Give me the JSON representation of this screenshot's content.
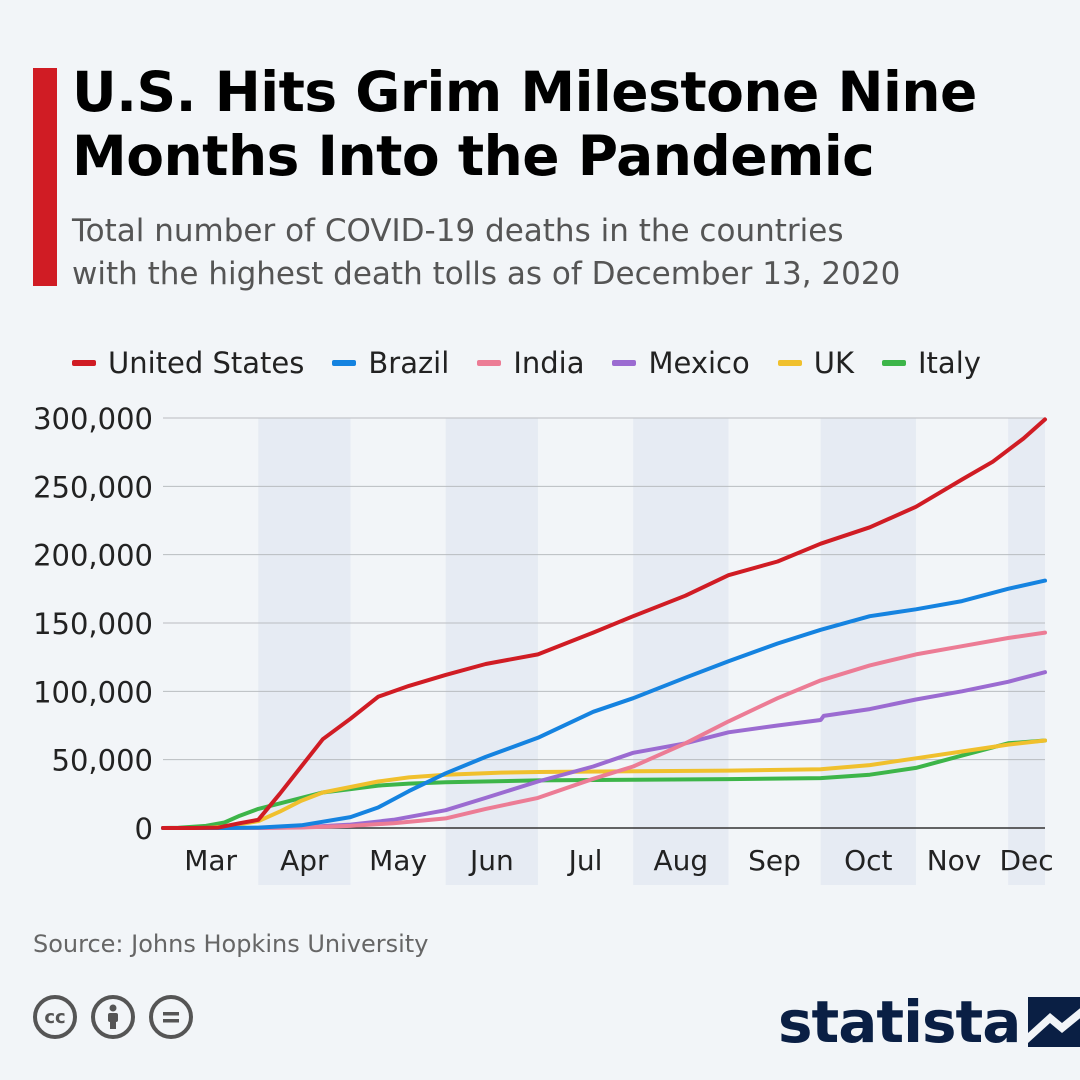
{
  "header": {
    "title_line1": "U.S. Hits Grim Milestone Nine",
    "title_line2": "Months Into the Pandemic",
    "subtitle_line1": "Total number of COVID-19 deaths in the countries",
    "subtitle_line2": "with the highest death tolls as of December 13, 2020",
    "accent_color": "#d01c24"
  },
  "source": "Source: Johns Hopkins University",
  "brand": {
    "name": "statista",
    "color": "#0a1f44"
  },
  "license_icons": [
    "cc-icon",
    "attribution-icon",
    "no-derivatives-icon"
  ],
  "chart_data": {
    "type": "line",
    "title": "U.S. Hits Grim Milestone Nine Months Into the Pandemic",
    "xlabel": "",
    "ylabel": "",
    "ylim": [
      0,
      300000
    ],
    "y_ticks": [
      0,
      50000,
      100000,
      150000,
      200000,
      250000,
      300000
    ],
    "y_tick_labels": [
      "0",
      "50,000",
      "100,000",
      "150,000",
      "200,000",
      "250,000",
      "300,000"
    ],
    "x_range_days": [
      0,
      287
    ],
    "x_unit": "days since Mar 1, 2020",
    "months": [
      {
        "label": "Mar",
        "start": 0,
        "end": 31
      },
      {
        "label": "Apr",
        "start": 31,
        "end": 61
      },
      {
        "label": "May",
        "start": 61,
        "end": 92
      },
      {
        "label": "Jun",
        "start": 92,
        "end": 122
      },
      {
        "label": "Jul",
        "start": 122,
        "end": 153
      },
      {
        "label": "Aug",
        "start": 153,
        "end": 184
      },
      {
        "label": "Sep",
        "start": 184,
        "end": 214
      },
      {
        "label": "Oct",
        "start": 214,
        "end": 245
      },
      {
        "label": "Nov",
        "start": 245,
        "end": 275
      },
      {
        "label": "Dec",
        "start": 275,
        "end": 287
      }
    ],
    "legend_position": "top-left",
    "series": [
      {
        "name": "United States",
        "color": "#d01c24",
        "x": [
          0,
          10,
          18,
          25,
          31,
          38,
          45,
          52,
          61,
          70,
          80,
          92,
          105,
          122,
          140,
          153,
          170,
          184,
          200,
          214,
          230,
          245,
          260,
          270,
          280,
          287
        ],
        "y": [
          0,
          0,
          300,
          3500,
          6000,
          25000,
          45000,
          65000,
          80000,
          96000,
          104000,
          112000,
          120000,
          127000,
          143000,
          155000,
          170000,
          185000,
          195000,
          208000,
          220000,
          235000,
          255000,
          268000,
          285000,
          299000
        ]
      },
      {
        "name": "Brazil",
        "color": "#1583e0",
        "x": [
          0,
          20,
          31,
          45,
          61,
          70,
          80,
          92,
          105,
          122,
          140,
          153,
          170,
          184,
          200,
          214,
          230,
          245,
          260,
          275,
          287
        ],
        "y": [
          0,
          0,
          300,
          2000,
          8000,
          15000,
          27000,
          40000,
          52000,
          66000,
          85000,
          95000,
          110000,
          122000,
          135000,
          145000,
          155000,
          160000,
          166000,
          175000,
          181000
        ]
      },
      {
        "name": "India",
        "color": "#ec7c95",
        "x": [
          0,
          31,
          45,
          61,
          75,
          92,
          105,
          122,
          140,
          153,
          170,
          184,
          200,
          214,
          230,
          245,
          260,
          275,
          287
        ],
        "y": [
          0,
          0,
          400,
          1500,
          3500,
          7000,
          14000,
          22000,
          36000,
          45000,
          62000,
          78000,
          95000,
          108000,
          119000,
          127000,
          133000,
          139000,
          143000
        ]
      },
      {
        "name": "Mexico",
        "color": "#9b6bd1",
        "x": [
          0,
          31,
          45,
          61,
          75,
          92,
          105,
          122,
          140,
          153,
          170,
          184,
          200,
          214,
          215,
          230,
          245,
          260,
          275,
          287
        ],
        "y": [
          0,
          0,
          500,
          2500,
          6000,
          13000,
          22000,
          34000,
          45000,
          55000,
          62000,
          70000,
          75000,
          79000,
          82000,
          87000,
          94000,
          100000,
          107000,
          114000
        ]
      },
      {
        "name": "UK",
        "color": "#f0c02d",
        "x": [
          0,
          14,
          20,
          31,
          38,
          45,
          52,
          61,
          70,
          80,
          92,
          110,
          122,
          153,
          184,
          214,
          230,
          245,
          260,
          275,
          287
        ],
        "y": [
          0,
          0,
          1000,
          5000,
          12000,
          20000,
          26000,
          30000,
          34000,
          37000,
          39000,
          40500,
          41000,
          41500,
          42000,
          43000,
          46000,
          51000,
          56000,
          61000,
          64000
        ]
      },
      {
        "name": "Italy",
        "color": "#3db549",
        "x": [
          0,
          5,
          14,
          20,
          25,
          31,
          38,
          45,
          52,
          61,
          70,
          80,
          92,
          122,
          153,
          184,
          214,
          230,
          245,
          260,
          275,
          287
        ],
        "y": [
          0,
          200,
          1500,
          4000,
          9000,
          14000,
          18000,
          22000,
          26000,
          28500,
          31000,
          32500,
          33500,
          34800,
          35300,
          35800,
          36500,
          39000,
          44000,
          53000,
          62000,
          64000
        ]
      }
    ]
  }
}
